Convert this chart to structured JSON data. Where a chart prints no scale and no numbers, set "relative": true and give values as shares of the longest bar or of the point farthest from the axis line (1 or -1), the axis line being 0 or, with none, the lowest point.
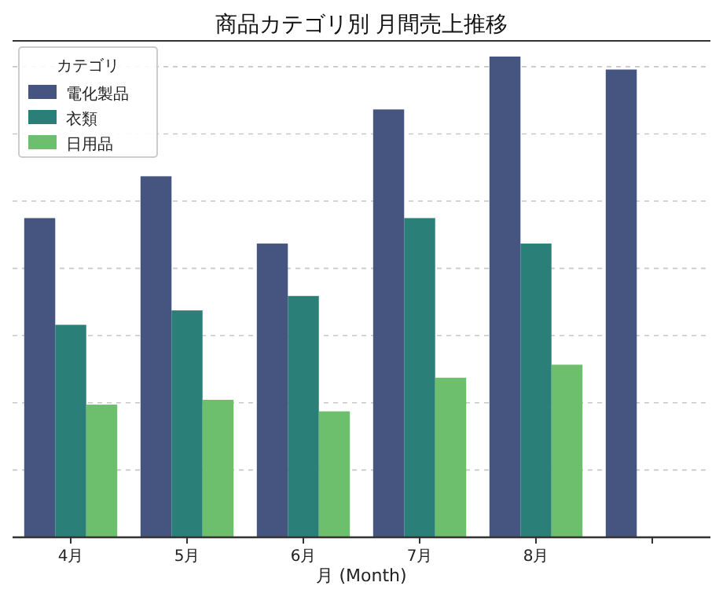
{
  "chart_data": {
    "type": "bar",
    "title": "商品カテゴリ別 月間売上推移",
    "xlabel": "月 (Month)",
    "legend_title": "カテゴリ",
    "relative": true,
    "grid": "y",
    "legend": "top left",
    "categories": [
      "4月",
      "5月",
      "6月",
      "7月",
      "8月",
      null
    ],
    "series": [
      {
        "name": "電化製品",
        "color": "#45557f",
        "values": [
          0.664,
          0.751,
          0.611,
          0.89,
          1.0,
          0.973
        ]
      },
      {
        "name": "衣類",
        "color": "#2a8079",
        "values": [
          0.442,
          0.472,
          0.502,
          0.664,
          0.611,
          null
        ]
      },
      {
        "name": "日用品",
        "color": "#6dbf6e",
        "values": [
          0.276,
          0.286,
          0.262,
          0.332,
          0.359,
          null
        ]
      }
    ]
  }
}
